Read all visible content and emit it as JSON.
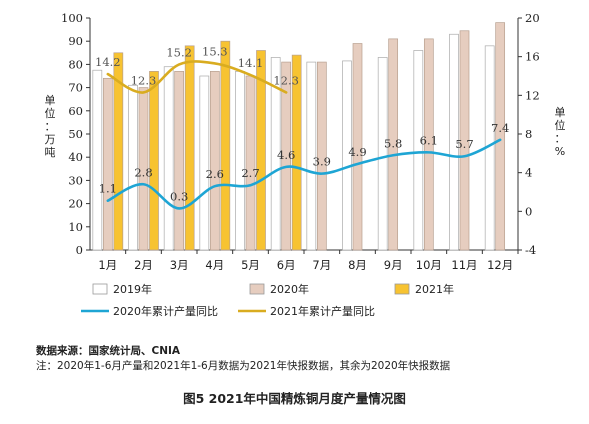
{
  "chart_data": {
    "type": "bar",
    "categories": [
      "1月",
      "2月",
      "3月",
      "4月",
      "5月",
      "6月",
      "7月",
      "8月",
      "9月",
      "10月",
      "11月",
      "12月"
    ],
    "series": [
      {
        "name": "2019年",
        "kind": "bar",
        "axis": "left",
        "color": "#ffffff",
        "values": [
          77.5,
          71,
          79,
          75,
          77,
          83,
          81,
          81.5,
          83,
          86,
          93,
          88
        ]
      },
      {
        "name": "2020年",
        "kind": "bar",
        "axis": "left",
        "color": "#e6cdbf",
        "values": [
          74,
          70,
          77,
          77,
          75,
          81,
          81,
          89,
          91,
          91,
          94.5,
          98
        ]
      },
      {
        "name": "2021年",
        "kind": "bar",
        "axis": "left",
        "color": "#f7c331",
        "values": [
          85,
          77,
          88,
          90,
          86,
          84,
          null,
          null,
          null,
          null,
          null,
          null
        ]
      },
      {
        "name": "2020年累计产量同比",
        "kind": "line",
        "axis": "right",
        "color": "#1ea5d4",
        "values": [
          1.1,
          2.8,
          0.3,
          2.6,
          2.7,
          4.6,
          3.9,
          4.9,
          5.8,
          6.1,
          5.7,
          7.4
        ],
        "labels": [
          "1.1",
          "2.8",
          "0.3",
          "2.6",
          "2.7",
          "4.6",
          "3.9",
          "4.9",
          "5.8",
          "6.1",
          "5.7",
          "7.4"
        ]
      },
      {
        "name": "2021年累计产量同比",
        "kind": "line",
        "axis": "right",
        "color": "#d9ac20",
        "values": [
          14.2,
          12.3,
          15.2,
          15.3,
          14.1,
          12.3,
          null,
          null,
          null,
          null,
          null,
          null
        ],
        "labels": [
          "14.2",
          "12.3",
          "15.2",
          "15.3",
          "14.1",
          "12.3"
        ]
      }
    ],
    "y_left": {
      "label": "单位：万吨",
      "min": 0,
      "max": 100,
      "ticks": [
        0,
        10,
        20,
        30,
        40,
        50,
        60,
        70,
        80,
        90,
        100
      ]
    },
    "y_right": {
      "label": "单位：%",
      "min": -4,
      "max": 20,
      "ticks": [
        "-4",
        "0",
        "4",
        "8",
        "12",
        "16",
        "20"
      ]
    },
    "grid": false,
    "legend_position": "bottom"
  },
  "source": "数据来源：国家统计局、CNIA",
  "note": "注：2020年1-6月产量和2021年1-6月数据为2021年快报数据，其余为2020年快报数据",
  "caption": "图5 2021年中国精炼铜月度产量情况图"
}
